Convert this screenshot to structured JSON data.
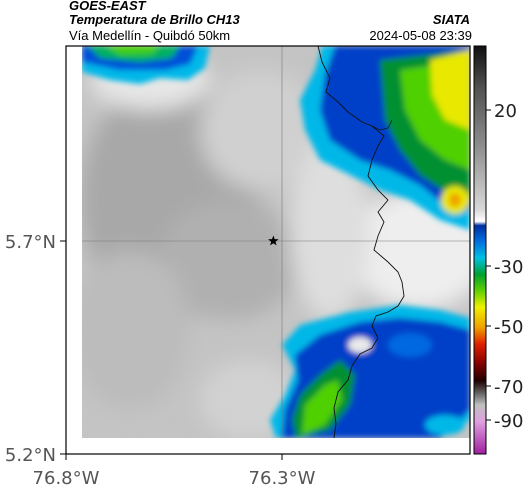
{
  "header": {
    "satellite": "GOES-EAST",
    "product": "Temperatura de Brillo CH13",
    "route": "Vía Medellín - Quibdó 50km",
    "agency": "SIATA",
    "datetime": "2024-05-08 23:39"
  },
  "map": {
    "lat_ticks": [
      {
        "label": "5.7°N",
        "value": 5.7
      },
      {
        "label": "5.2°N",
        "value": 5.2
      }
    ],
    "lon_ticks": [
      {
        "label": "76.8°W",
        "value": -76.8
      },
      {
        "label": "76.3°W",
        "value": -76.3
      }
    ],
    "marker": {
      "name": "star-marker",
      "lat": 5.7,
      "lon": -76.32
    }
  },
  "colorbar": {
    "labels": [
      "20",
      "-30",
      "-50",
      "-70",
      "-90"
    ],
    "colors": {
      "warm": "#c8c8c8",
      "cold_blue": "#0050d0",
      "cyan": "#00b0e0",
      "green": "#00c000",
      "yellow": "#e0e000",
      "red": "#e02000",
      "magenta": "#c040c0"
    }
  }
}
